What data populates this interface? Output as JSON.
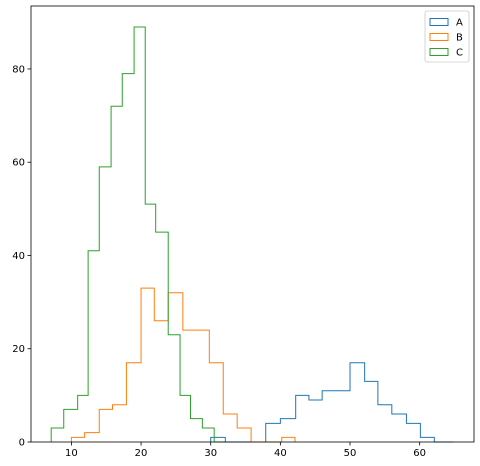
{
  "chart_data": {
    "type": "histogram",
    "title": "",
    "xlabel": "",
    "ylabel": "",
    "xlim": [
      4.2,
      67.8
    ],
    "ylim": [
      0,
      93.5
    ],
    "x_ticks": [
      10,
      20,
      30,
      40,
      50,
      60
    ],
    "y_ticks": [
      0,
      20,
      40,
      60,
      80
    ],
    "grid": false,
    "legend_position": "top-right",
    "histtype": "step",
    "series": [
      {
        "name": "A",
        "color": "#1f77b4",
        "bin_edges": [
          30.0,
          32.1,
          34.0,
          35.9,
          37.9,
          40.0,
          42.2,
          44.1,
          46.0,
          48.0,
          50.0,
          52.1,
          54.0,
          56.0,
          58.1,
          60.1,
          62.1,
          64.8
        ],
        "counts": [
          1,
          0,
          0,
          0,
          4,
          5,
          10,
          9,
          11,
          11,
          17,
          13,
          8,
          6,
          4,
          1,
          0
        ]
      },
      {
        "name": "B",
        "color": "#ff7f0e",
        "bin_edges": [
          10.0,
          11.9,
          14.0,
          15.9,
          17.9,
          20.0,
          21.9,
          23.9,
          26.0,
          27.8,
          29.8,
          31.8,
          33.8,
          35.8,
          37.9,
          40.2,
          42.1
        ],
        "counts": [
          1,
          2,
          7,
          8,
          17,
          33,
          26,
          32,
          24,
          24,
          17,
          6,
          3,
          0,
          0,
          1
        ]
      },
      {
        "name": "C",
        "color": "#2ca02c",
        "bin_edges": [
          7.1,
          8.9,
          10.9,
          12.4,
          14.0,
          15.7,
          17.3,
          19.0,
          20.6,
          22.1,
          23.9,
          25.6,
          27.1,
          28.8,
          30.5,
          32.1
        ],
        "counts": [
          3,
          7,
          10,
          41,
          59,
          72,
          79,
          89,
          51,
          45,
          23,
          10,
          5,
          3,
          0
        ]
      }
    ]
  }
}
